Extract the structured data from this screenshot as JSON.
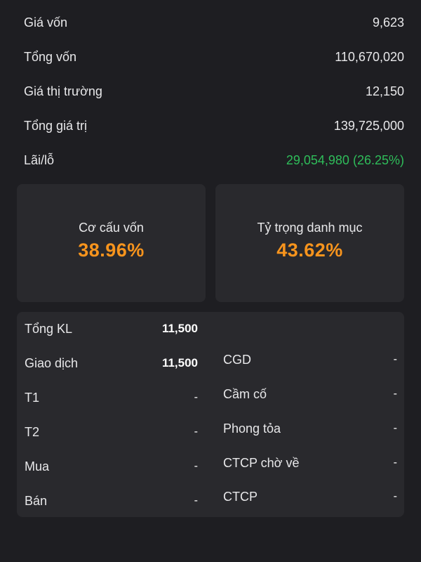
{
  "summary": {
    "rows": [
      {
        "label": "Giá vốn",
        "value": "9,623"
      },
      {
        "label": "Tổng vốn",
        "value": "110,670,020"
      },
      {
        "label": "Giá thị trường",
        "value": "12,150"
      },
      {
        "label": "Tổng giá trị",
        "value": "139,725,000"
      },
      {
        "label": "Lãi/lỗ",
        "value": "29,054,980 (26.25%)"
      }
    ]
  },
  "cards": [
    {
      "title": "Cơ cấu vốn",
      "value": "38.96%"
    },
    {
      "title": "Tỷ trọng danh mục",
      "value": "43.62%"
    }
  ],
  "details": {
    "left": [
      {
        "label": "Tổng KL",
        "value": "11,500"
      },
      {
        "label": "Giao dịch",
        "value": "11,500"
      },
      {
        "label": "T1",
        "value": "-"
      },
      {
        "label": "T2",
        "value": "-"
      },
      {
        "label": "Mua",
        "value": "-"
      },
      {
        "label": "Bán",
        "value": "-"
      }
    ],
    "right": [
      {
        "label": "CGD",
        "value": "-"
      },
      {
        "label": "Cầm cố",
        "value": "-"
      },
      {
        "label": "Phong tỏa",
        "value": "-"
      },
      {
        "label": "CTCP chờ về",
        "value": "-"
      },
      {
        "label": "CTCP",
        "value": "-"
      }
    ]
  },
  "colors": {
    "background": "#1e1e22",
    "card": "#29292d",
    "profit": "#2fbd5a",
    "highlight": "#f7941d"
  }
}
